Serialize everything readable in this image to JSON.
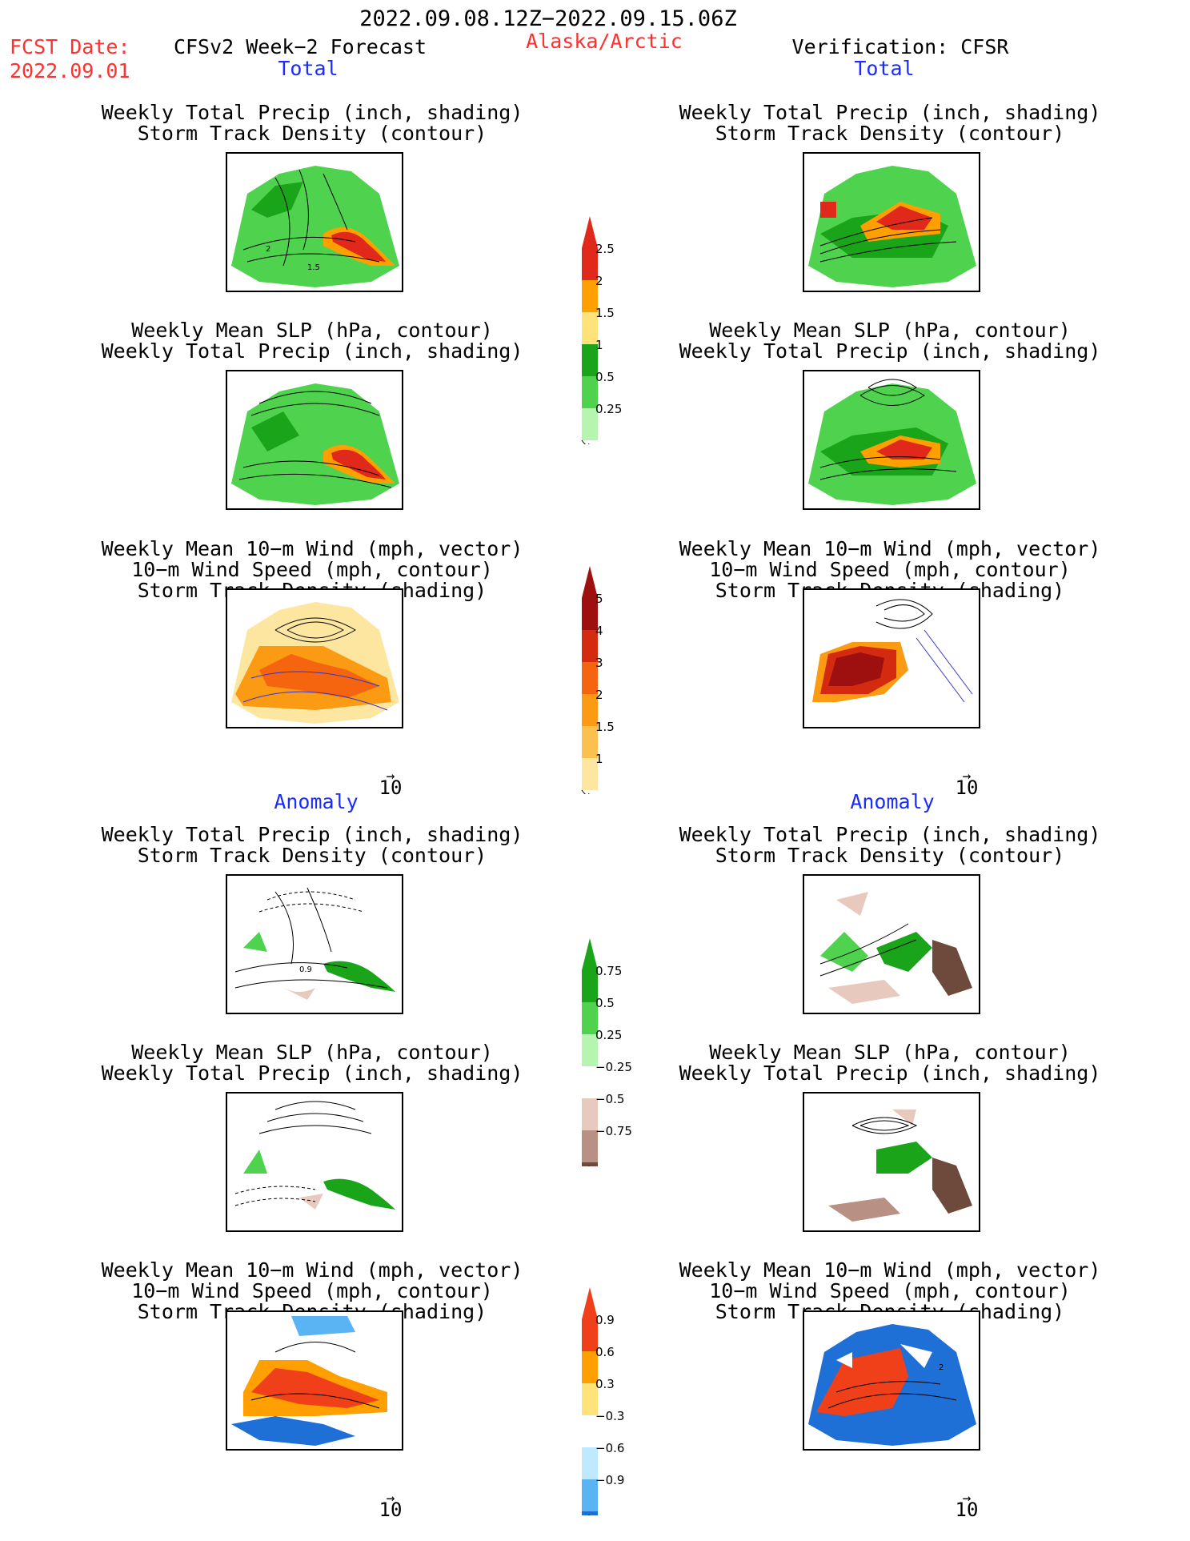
{
  "header": {
    "period": "2022.09.08.12Z−2022.09.15.06Z",
    "fcst_label": "FCST Date:",
    "fcst_date": "2022.09.01",
    "model": "CFSv2 Week−2 Forecast",
    "region": "Alaska/Arctic",
    "verification": "Verification: CFSR"
  },
  "sections": {
    "total": "Total",
    "anomaly": "Anomaly"
  },
  "titles": {
    "precip_storm": [
      "Weekly Total Precip (inch, shading)",
      "Storm Track Density (contour)"
    ],
    "slp_precip": [
      "Weekly Mean SLP (hPa, contour)",
      "Weekly Total Precip (inch, shading)"
    ],
    "wind_storm": [
      "Weekly Mean 10−m Wind (mph, vector)",
      "10−m Wind Speed (mph, contour)",
      "Storm Track Density (shading)"
    ]
  },
  "vector_scale": "10",
  "colorbars": {
    "precip_total": {
      "labels": [
        "2.5",
        "2",
        "1.5",
        "1",
        "0.5",
        "0.25"
      ],
      "colors": [
        "#e0281b",
        "#ff9f00",
        "#ffe27a",
        "#1aa41a",
        "#4fd34f",
        "#b6f5b0"
      ]
    },
    "storm_total": {
      "labels": [
        "5",
        "4",
        "3",
        "2",
        "1.5",
        "1"
      ],
      "colors": [
        "#9e0f0f",
        "#d42a10",
        "#f5640f",
        "#fb9a13",
        "#fcc04e",
        "#fde7a0"
      ]
    },
    "precip_anom": {
      "labels": [
        "0.75",
        "0.5",
        "0.25",
        "−0.25",
        "−0.5",
        "−0.75"
      ],
      "colors": [
        "#1aa41a",
        "#4fd34f",
        "#b6f5b0",
        "#ffffff",
        "#e8c9bd",
        "#b89184",
        "#6e4a3c"
      ]
    },
    "storm_anom": {
      "labels": [
        "0.9",
        "0.6",
        "0.3",
        "−0.3",
        "−0.6",
        "−0.9"
      ],
      "colors": [
        "#f0401a",
        "#ff9f00",
        "#ffe27a",
        "#ffffff",
        "#bfe9ff",
        "#5ab3f2",
        "#1e6fd6"
      ]
    }
  },
  "panel_labels": {
    "fc_precip_1": "2",
    "fc_precip_2": "1.5",
    "an_precip_1": "0.9",
    "ver_wind_1": "2"
  }
}
